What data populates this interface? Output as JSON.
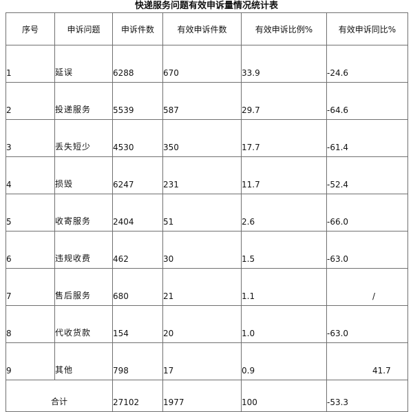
{
  "title": "快递服务问题有效申诉量情况统计表",
  "headers": [
    "序号",
    "申诉问题",
    "申诉件数",
    "有效申诉件数",
    "有效申诉比例%",
    "有效申诉同比%"
  ],
  "rows": [
    [
      "1",
      "延误",
      "6288",
      "670",
      "33.9",
      "-24.6"
    ],
    [
      "2",
      "投递服务",
      "5539",
      "587",
      "29.7",
      "-64.6"
    ],
    [
      "3",
      "丢失短少",
      "4530",
      "350",
      "17.7",
      "-61.4"
    ],
    [
      "4",
      "损毁",
      "6247",
      "231",
      "11.7",
      "-52.4"
    ],
    [
      "5",
      "收寄服务",
      "2404",
      "51",
      "2.6",
      "-66.0"
    ],
    [
      "6",
      "违规收费",
      "462",
      "30",
      "1.5",
      "-63.0"
    ],
    [
      "7",
      "售后服务",
      "680",
      "21",
      "1.1",
      "/"
    ],
    [
      "8",
      "代收货款",
      "154",
      "20",
      "1.0",
      "-63.0"
    ],
    [
      "9",
      "其他",
      "798",
      "17",
      "0.9",
      "41.7"
    ]
  ],
  "total": {
    "label": "合计",
    "complaints": "27102",
    "valid": "1977",
    "ratio": "100",
    "yoy": "-53.3"
  }
}
